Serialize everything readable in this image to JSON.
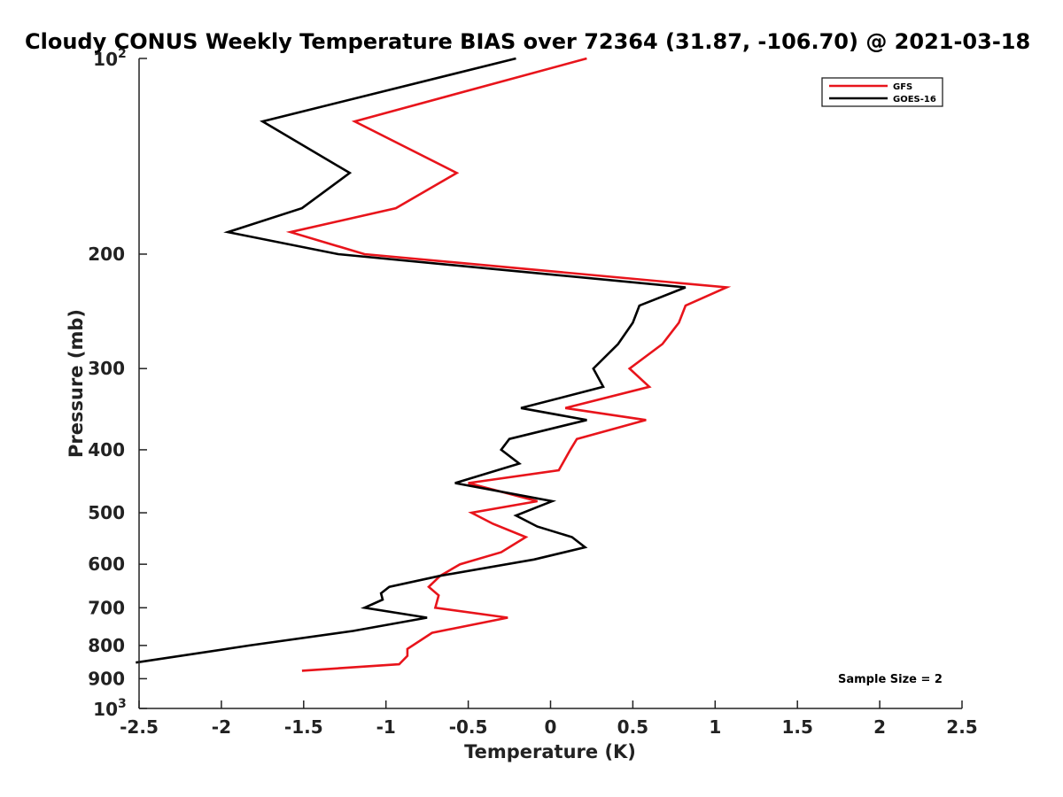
{
  "chart_data": {
    "type": "line",
    "title": "Cloudy CONUS Weekly Temperature BIAS over 72364 (31.87, -106.70) @ 2021-03-18",
    "xlabel": "Temperature (K)",
    "ylabel": "Pressure (mb)",
    "xlim": [
      -2.5,
      2.5
    ],
    "ylim": [
      100,
      1000
    ],
    "y_scale": "log",
    "y_reversed": true,
    "x_ticks": [
      -2.5,
      -2,
      -1.5,
      -1,
      -0.5,
      0,
      0.5,
      1,
      1.5,
      2,
      2.5
    ],
    "x_tick_labels": [
      "-2.5",
      "-2",
      "-1.5",
      "-1",
      "-0.5",
      "0",
      "0.5",
      "1",
      "1.5",
      "2",
      "2.5"
    ],
    "y_ticks": [
      100,
      200,
      300,
      400,
      500,
      600,
      700,
      800,
      900,
      1000
    ],
    "y_tick_labels": [
      {
        "value": 100,
        "base": "10",
        "exp": "2"
      },
      {
        "value": 200,
        "base": "200",
        "exp": ""
      },
      {
        "value": 300,
        "base": "300",
        "exp": ""
      },
      {
        "value": 400,
        "base": "400",
        "exp": ""
      },
      {
        "value": 500,
        "base": "500",
        "exp": ""
      },
      {
        "value": 600,
        "base": "600",
        "exp": ""
      },
      {
        "value": 700,
        "base": "700",
        "exp": ""
      },
      {
        "value": 800,
        "base": "800",
        "exp": ""
      },
      {
        "value": 900,
        "base": "900",
        "exp": ""
      },
      {
        "value": 1000,
        "base": "10",
        "exp": "3"
      }
    ],
    "grid": false,
    "legend_position": "top-right",
    "annotation": "Sample Size = 2",
    "series": [
      {
        "name": "GFS",
        "color": "#e8141b",
        "points": [
          [
            0.22,
            100
          ],
          [
            -1.19,
            125
          ],
          [
            -0.57,
            150
          ],
          [
            -0.94,
            170
          ],
          [
            -1.58,
            185
          ],
          [
            -1.13,
            200
          ],
          [
            1.07,
            225
          ],
          [
            0.82,
            240
          ],
          [
            0.78,
            255
          ],
          [
            0.68,
            275
          ],
          [
            0.48,
            300
          ],
          [
            0.6,
            320
          ],
          [
            0.09,
            345
          ],
          [
            0.58,
            360
          ],
          [
            0.16,
            385
          ],
          [
            0.12,
            400
          ],
          [
            0.05,
            430
          ],
          [
            -0.5,
            450
          ],
          [
            -0.08,
            480
          ],
          [
            -0.48,
            500
          ],
          [
            -0.35,
            520
          ],
          [
            -0.15,
            545
          ],
          [
            -0.3,
            575
          ],
          [
            -0.55,
            600
          ],
          [
            -0.67,
            625
          ],
          [
            -0.74,
            650
          ],
          [
            -0.68,
            670
          ],
          [
            -0.7,
            700
          ],
          [
            -0.26,
            725
          ],
          [
            -0.72,
            765
          ],
          [
            -0.87,
            810
          ],
          [
            -0.87,
            830
          ],
          [
            -0.92,
            855
          ],
          [
            -1.51,
            875
          ]
        ]
      },
      {
        "name": "GOES-16",
        "color": "#000000",
        "points": [
          [
            -0.21,
            100
          ],
          [
            -1.75,
            125
          ],
          [
            -1.22,
            150
          ],
          [
            -1.51,
            170
          ],
          [
            -1.96,
            185
          ],
          [
            -1.29,
            200
          ],
          [
            0.82,
            225
          ],
          [
            0.54,
            240
          ],
          [
            0.5,
            255
          ],
          [
            0.41,
            275
          ],
          [
            0.26,
            300
          ],
          [
            0.32,
            320
          ],
          [
            -0.18,
            345
          ],
          [
            0.22,
            360
          ],
          [
            -0.25,
            385
          ],
          [
            -0.3,
            400
          ],
          [
            -0.19,
            420
          ],
          [
            -0.58,
            450
          ],
          [
            0.01,
            480
          ],
          [
            -0.08,
            490
          ],
          [
            -0.21,
            505
          ],
          [
            -0.08,
            525
          ],
          [
            0.13,
            545
          ],
          [
            0.21,
            565
          ],
          [
            -0.1,
            590
          ],
          [
            -0.67,
            625
          ],
          [
            -0.98,
            650
          ],
          [
            -1.03,
            665
          ],
          [
            -1.02,
            680
          ],
          [
            -1.13,
            700
          ],
          [
            -0.75,
            725
          ],
          [
            -1.2,
            760
          ],
          [
            -1.83,
            800
          ],
          [
            -2.52,
            850
          ]
        ]
      }
    ]
  }
}
